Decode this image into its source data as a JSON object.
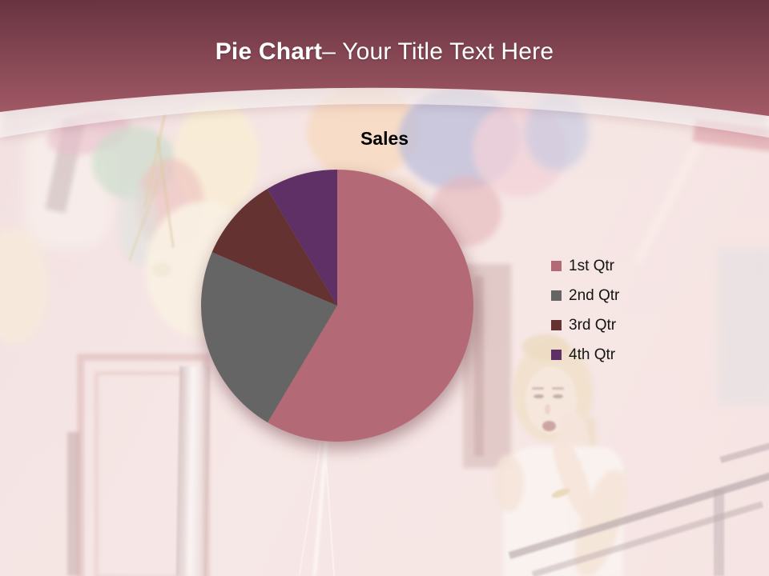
{
  "slide": {
    "title_bold": "Pie Chart",
    "title_regular": "– Your Title Text Here",
    "background_description": "Washed-out photo of a blonde woman with colorful balloons beside a pink building with windows and a stair railing"
  },
  "theme": {
    "header_gradient_top": "#693441",
    "header_gradient_bottom": "#a25a66",
    "header_band_light": "rgba(255,255,255,0.55)",
    "title_color": "#ffffff",
    "legend_text_color": "#141414"
  },
  "chart_data": {
    "type": "pie",
    "title": "Sales",
    "categories": [
      "1st Qtr",
      "2nd Qtr",
      "3rd Qtr",
      "4th Qtr"
    ],
    "values": [
      58.6,
      22.9,
      10.0,
      8.6
    ],
    "unit": "percent",
    "colors": [
      "#b46a76",
      "#656565",
      "#643231",
      "#5f3066"
    ],
    "legend_position": "right",
    "start_angle_deg": 0,
    "direction": "clockwise",
    "grid": false
  }
}
